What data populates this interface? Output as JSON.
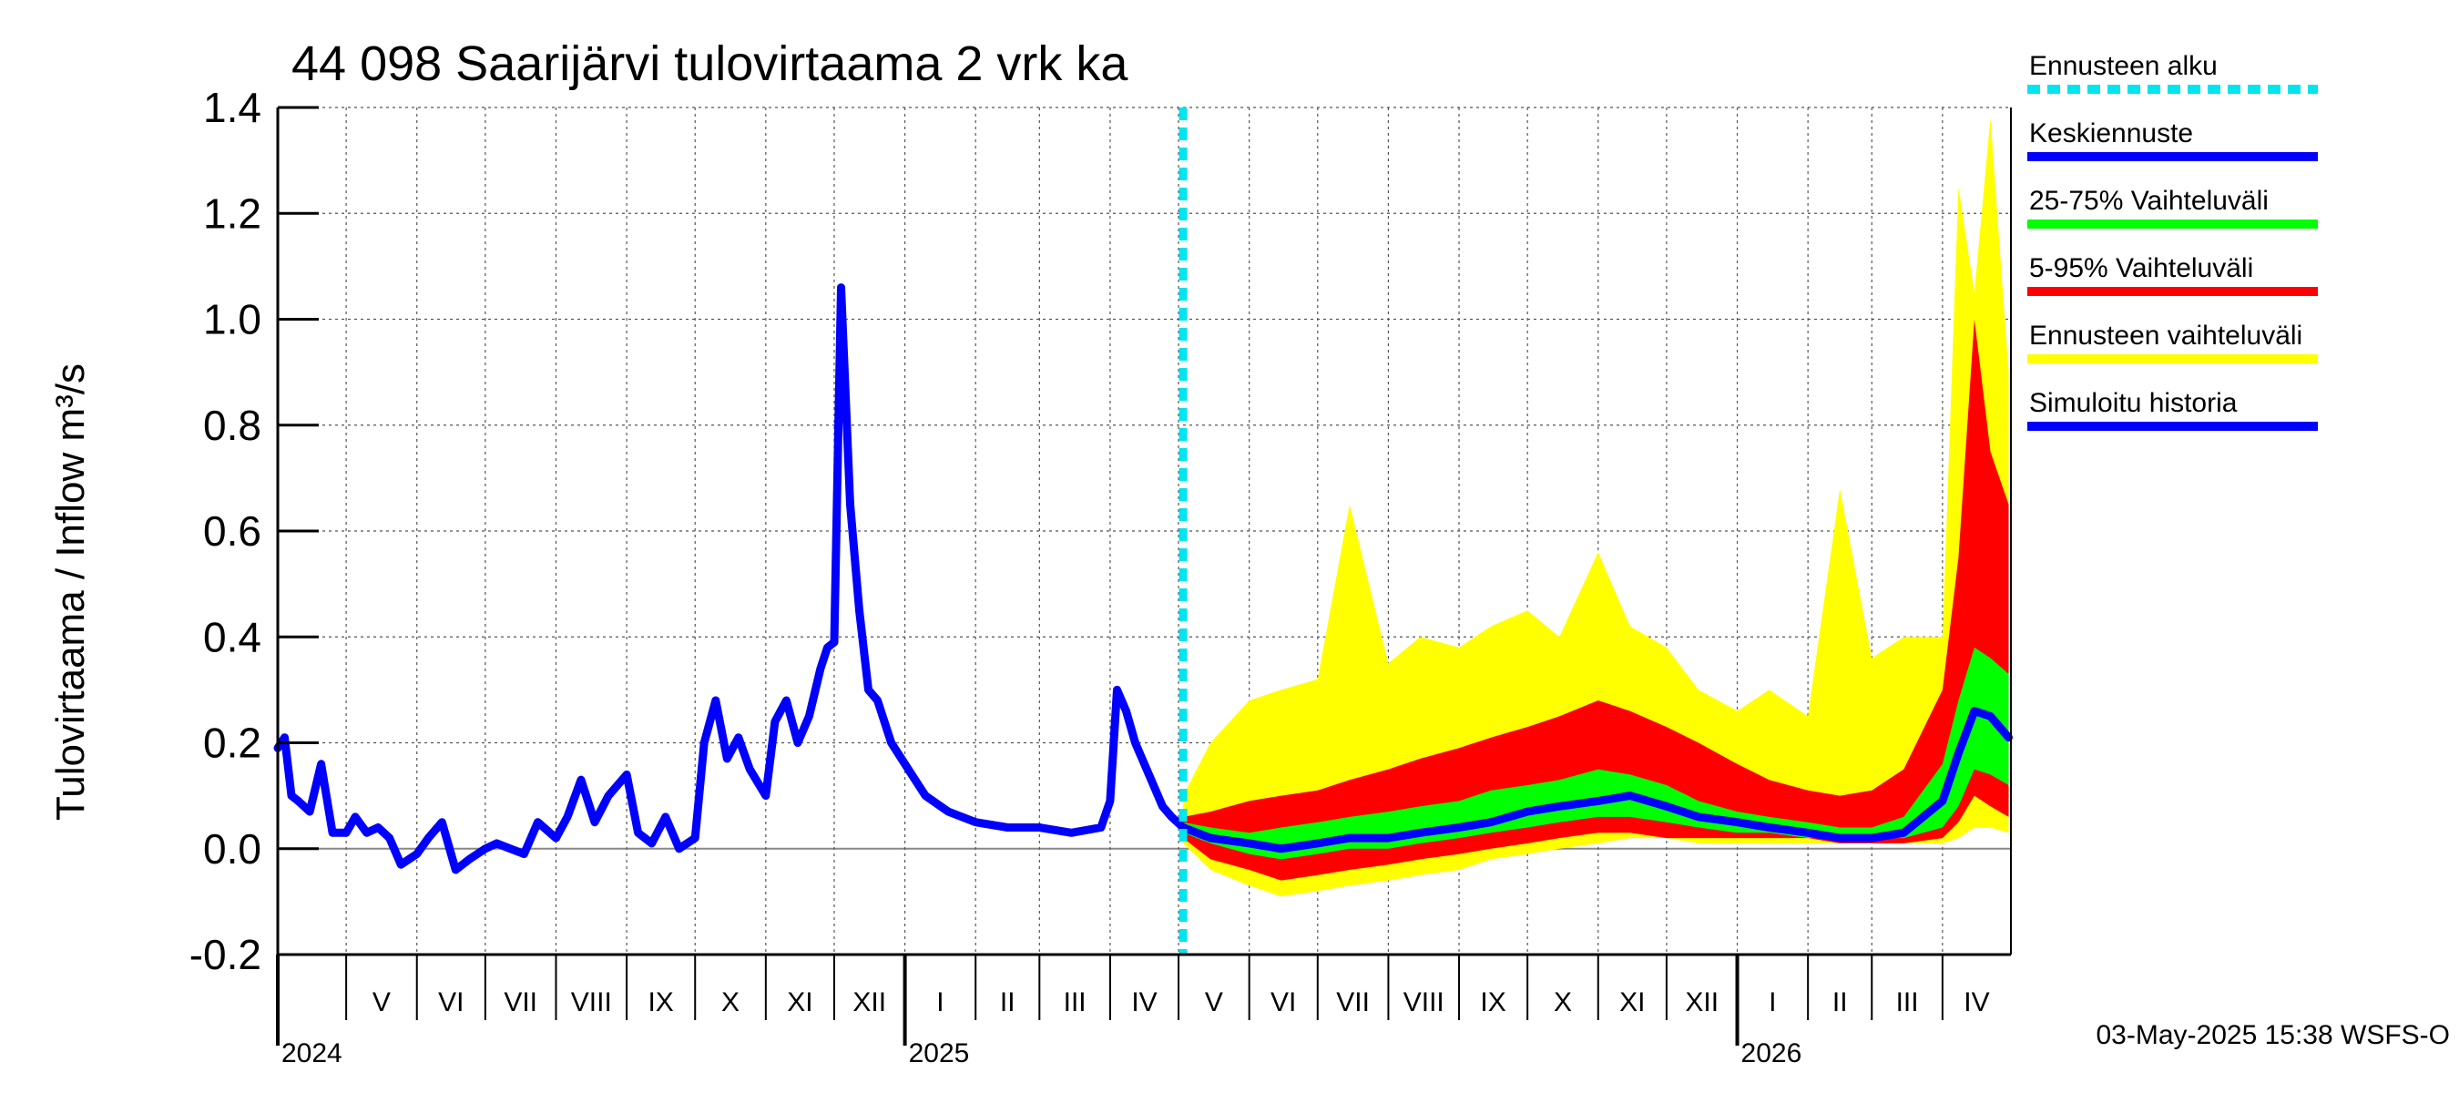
{
  "chart_data": {
    "type": "area",
    "title": "44 098 Saarijärvi tulovirtaama 2 vrk ka",
    "ylabel": "Tulovirtaama / Inflow    m³/s",
    "ylim": [
      -0.2,
      1.4
    ],
    "yticks": [
      -0.2,
      0.0,
      0.2,
      0.4,
      0.6,
      0.8,
      1.0,
      1.2,
      1.4
    ],
    "ytick_labels": [
      "-0.2",
      "0.0",
      "0.2",
      "0.4",
      "0.6",
      "0.8",
      "1.0",
      "1.2",
      "1.4"
    ],
    "xlim": [
      "2024-04-01",
      "2026-05-01"
    ],
    "grid": true,
    "legend_position": "right",
    "forecast_start": "2025-05-03",
    "months": [
      {
        "label": "V",
        "start": "2024-05-01"
      },
      {
        "label": "VI",
        "start": "2024-06-01"
      },
      {
        "label": "VII",
        "start": "2024-07-01"
      },
      {
        "label": "VIII",
        "start": "2024-08-01"
      },
      {
        "label": "IX",
        "start": "2024-09-01"
      },
      {
        "label": "X",
        "start": "2024-10-01"
      },
      {
        "label": "XI",
        "start": "2024-11-01"
      },
      {
        "label": "XII",
        "start": "2024-12-01"
      },
      {
        "label": "I",
        "start": "2025-01-01"
      },
      {
        "label": "II",
        "start": "2025-02-01"
      },
      {
        "label": "III",
        "start": "2025-03-01"
      },
      {
        "label": "IV",
        "start": "2025-04-01"
      },
      {
        "label": "V",
        "start": "2025-05-01"
      },
      {
        "label": "VI",
        "start": "2025-06-01"
      },
      {
        "label": "VII",
        "start": "2025-07-01"
      },
      {
        "label": "VIII",
        "start": "2025-08-01"
      },
      {
        "label": "IX",
        "start": "2025-09-01"
      },
      {
        "label": "X",
        "start": "2025-10-01"
      },
      {
        "label": "XI",
        "start": "2025-11-01"
      },
      {
        "label": "XII",
        "start": "2025-12-01"
      },
      {
        "label": "I",
        "start": "2026-01-01"
      },
      {
        "label": "II",
        "start": "2026-02-01"
      },
      {
        "label": "III",
        "start": "2026-03-01"
      },
      {
        "label": "IV",
        "start": "2026-04-01"
      }
    ],
    "years": [
      {
        "label": "2024",
        "start": "2024-04-01"
      },
      {
        "label": "2025",
        "start": "2025-01-01"
      },
      {
        "label": "2026",
        "start": "2026-01-01"
      }
    ],
    "series": [
      {
        "name": "Simuloitu historia",
        "color": "#0000ff",
        "x": [
          "2024-04-01",
          "2024-04-04",
          "2024-04-07",
          "2024-04-10",
          "2024-04-15",
          "2024-04-20",
          "2024-04-25",
          "2024-05-01",
          "2024-05-05",
          "2024-05-10",
          "2024-05-15",
          "2024-05-20",
          "2024-05-25",
          "2024-06-01",
          "2024-06-06",
          "2024-06-12",
          "2024-06-18",
          "2024-06-24",
          "2024-07-01",
          "2024-07-06",
          "2024-07-12",
          "2024-07-18",
          "2024-07-24",
          "2024-08-01",
          "2024-08-06",
          "2024-08-12",
          "2024-08-18",
          "2024-08-24",
          "2024-09-01",
          "2024-09-06",
          "2024-09-12",
          "2024-09-18",
          "2024-09-24",
          "2024-10-01",
          "2024-10-05",
          "2024-10-10",
          "2024-10-15",
          "2024-10-20",
          "2024-10-25",
          "2024-11-01",
          "2024-11-05",
          "2024-11-10",
          "2024-11-15",
          "2024-11-20",
          "2024-11-25",
          "2024-11-28",
          "2024-12-01",
          "2024-12-04",
          "2024-12-08",
          "2024-12-12",
          "2024-12-16",
          "2024-12-20",
          "2024-12-26",
          "2025-01-01",
          "2025-01-10",
          "2025-01-20",
          "2025-02-01",
          "2025-02-15",
          "2025-03-01",
          "2025-03-15",
          "2025-03-28",
          "2025-04-01",
          "2025-04-04",
          "2025-04-08",
          "2025-04-12",
          "2025-04-18",
          "2025-04-24",
          "2025-04-28",
          "2025-05-03"
        ],
        "values": [
          0.19,
          0.21,
          0.1,
          0.09,
          0.07,
          0.16,
          0.03,
          0.03,
          0.06,
          0.03,
          0.04,
          0.02,
          -0.03,
          -0.01,
          0.02,
          0.05,
          -0.04,
          -0.02,
          0.0,
          0.01,
          0.0,
          -0.01,
          0.05,
          0.02,
          0.06,
          0.13,
          0.05,
          0.1,
          0.14,
          0.03,
          0.01,
          0.06,
          0.0,
          0.02,
          0.2,
          0.28,
          0.17,
          0.21,
          0.15,
          0.1,
          0.24,
          0.28,
          0.2,
          0.25,
          0.34,
          0.38,
          0.39,
          1.06,
          0.65,
          0.45,
          0.3,
          0.28,
          0.2,
          0.16,
          0.1,
          0.07,
          0.05,
          0.04,
          0.04,
          0.03,
          0.04,
          0.09,
          0.3,
          0.26,
          0.2,
          0.14,
          0.08,
          0.06,
          0.04
        ]
      },
      {
        "name": "Keskiennuste",
        "color": "#0000ff",
        "x": [
          "2025-05-03",
          "2025-05-15",
          "2025-06-01",
          "2025-06-15",
          "2025-07-01",
          "2025-07-15",
          "2025-08-01",
          "2025-08-15",
          "2025-09-01",
          "2025-09-15",
          "2025-10-01",
          "2025-10-15",
          "2025-11-01",
          "2025-11-15",
          "2025-12-01",
          "2025-12-15",
          "2026-01-01",
          "2026-01-15",
          "2026-02-01",
          "2026-02-15",
          "2026-03-01",
          "2026-03-15",
          "2026-04-01",
          "2026-04-08",
          "2026-04-15",
          "2026-04-22",
          "2026-04-30"
        ],
        "values": [
          0.04,
          0.02,
          0.01,
          0.0,
          0.01,
          0.02,
          0.02,
          0.03,
          0.04,
          0.05,
          0.07,
          0.08,
          0.09,
          0.1,
          0.08,
          0.06,
          0.05,
          0.04,
          0.03,
          0.02,
          0.02,
          0.03,
          0.09,
          0.18,
          0.26,
          0.25,
          0.21
        ]
      },
      {
        "name": "25-75% Vaihteluväli",
        "color": "#00ff00",
        "x": [
          "2025-05-03",
          "2025-05-15",
          "2025-06-01",
          "2025-06-15",
          "2025-07-01",
          "2025-07-15",
          "2025-08-01",
          "2025-08-15",
          "2025-09-01",
          "2025-09-15",
          "2025-10-01",
          "2025-10-15",
          "2025-11-01",
          "2025-11-15",
          "2025-12-01",
          "2025-12-15",
          "2026-01-01",
          "2026-01-15",
          "2026-02-01",
          "2026-02-15",
          "2026-03-01",
          "2026-03-15",
          "2026-04-01",
          "2026-04-08",
          "2026-04-15",
          "2026-04-22",
          "2026-04-30"
        ],
        "low": [
          0.03,
          0.01,
          -0.01,
          -0.02,
          -0.01,
          0.0,
          0.0,
          0.01,
          0.02,
          0.03,
          0.04,
          0.05,
          0.06,
          0.06,
          0.05,
          0.04,
          0.03,
          0.03,
          0.02,
          0.02,
          0.02,
          0.02,
          0.04,
          0.08,
          0.15,
          0.14,
          0.12
        ],
        "high": [
          0.05,
          0.04,
          0.03,
          0.04,
          0.05,
          0.06,
          0.07,
          0.08,
          0.09,
          0.11,
          0.12,
          0.13,
          0.15,
          0.14,
          0.12,
          0.09,
          0.07,
          0.06,
          0.05,
          0.04,
          0.04,
          0.06,
          0.16,
          0.28,
          0.38,
          0.36,
          0.33
        ]
      },
      {
        "name": "5-95% Vaihteluväli",
        "color": "#ff0000",
        "x": [
          "2025-05-03",
          "2025-05-15",
          "2025-06-01",
          "2025-06-15",
          "2025-07-01",
          "2025-07-15",
          "2025-08-01",
          "2025-08-15",
          "2025-09-01",
          "2025-09-15",
          "2025-10-01",
          "2025-10-15",
          "2025-11-01",
          "2025-11-15",
          "2025-12-01",
          "2025-12-15",
          "2026-01-01",
          "2026-01-15",
          "2026-02-01",
          "2026-02-15",
          "2026-03-01",
          "2026-03-15",
          "2026-04-01",
          "2026-04-08",
          "2026-04-15",
          "2026-04-22",
          "2026-04-30"
        ],
        "low": [
          0.02,
          -0.02,
          -0.04,
          -0.06,
          -0.05,
          -0.04,
          -0.03,
          -0.02,
          -0.01,
          0.0,
          0.01,
          0.02,
          0.03,
          0.03,
          0.02,
          0.02,
          0.02,
          0.02,
          0.02,
          0.01,
          0.01,
          0.01,
          0.02,
          0.05,
          0.1,
          0.08,
          0.06
        ],
        "high": [
          0.06,
          0.07,
          0.09,
          0.1,
          0.11,
          0.13,
          0.15,
          0.17,
          0.19,
          0.21,
          0.23,
          0.25,
          0.28,
          0.26,
          0.23,
          0.2,
          0.16,
          0.13,
          0.11,
          0.1,
          0.11,
          0.15,
          0.3,
          0.55,
          1.0,
          0.75,
          0.65
        ]
      },
      {
        "name": "Ennusteen vaihteluväli",
        "color": "#ffff00",
        "x": [
          "2025-05-03",
          "2025-05-15",
          "2025-06-01",
          "2025-06-15",
          "2025-07-01",
          "2025-07-15",
          "2025-08-01",
          "2025-08-15",
          "2025-09-01",
          "2025-09-15",
          "2025-10-01",
          "2025-10-15",
          "2025-11-01",
          "2025-11-15",
          "2025-12-01",
          "2025-12-15",
          "2026-01-01",
          "2026-01-15",
          "2026-02-01",
          "2026-02-15",
          "2026-03-01",
          "2026-03-15",
          "2026-04-01",
          "2026-04-08",
          "2026-04-15",
          "2026-04-22",
          "2026-04-30"
        ],
        "low": [
          0.01,
          -0.04,
          -0.07,
          -0.09,
          -0.08,
          -0.07,
          -0.06,
          -0.05,
          -0.04,
          -0.02,
          -0.01,
          0.0,
          0.01,
          0.02,
          0.02,
          0.01,
          0.01,
          0.01,
          0.01,
          0.01,
          0.01,
          0.01,
          0.01,
          0.02,
          0.04,
          0.04,
          0.03
        ],
        "high": [
          0.1,
          0.2,
          0.28,
          0.3,
          0.32,
          0.65,
          0.35,
          0.4,
          0.38,
          0.42,
          0.45,
          0.4,
          0.56,
          0.42,
          0.38,
          0.3,
          0.26,
          0.3,
          0.25,
          0.68,
          0.36,
          0.4,
          0.4,
          1.25,
          1.05,
          1.38,
          0.9
        ]
      }
    ],
    "legend": [
      {
        "label": "Ennusteen alku",
        "color": "#00e5ee",
        "style": "dashed"
      },
      {
        "label": "Keskiennuste",
        "color": "#0000ff",
        "style": "solid"
      },
      {
        "label": "25-75% Vaihteluväli",
        "color": "#00ff00",
        "style": "solid"
      },
      {
        "label": "5-95% Vaihteluväli",
        "color": "#ff0000",
        "style": "solid"
      },
      {
        "label": "Ennusteen vaihteluväli",
        "color": "#ffff00",
        "style": "solid"
      },
      {
        "label": "Simuloitu historia",
        "color": "#0000ff",
        "style": "solid"
      }
    ]
  },
  "footer": {
    "timestamp": "03-May-2025 15:38 WSFS-O"
  }
}
